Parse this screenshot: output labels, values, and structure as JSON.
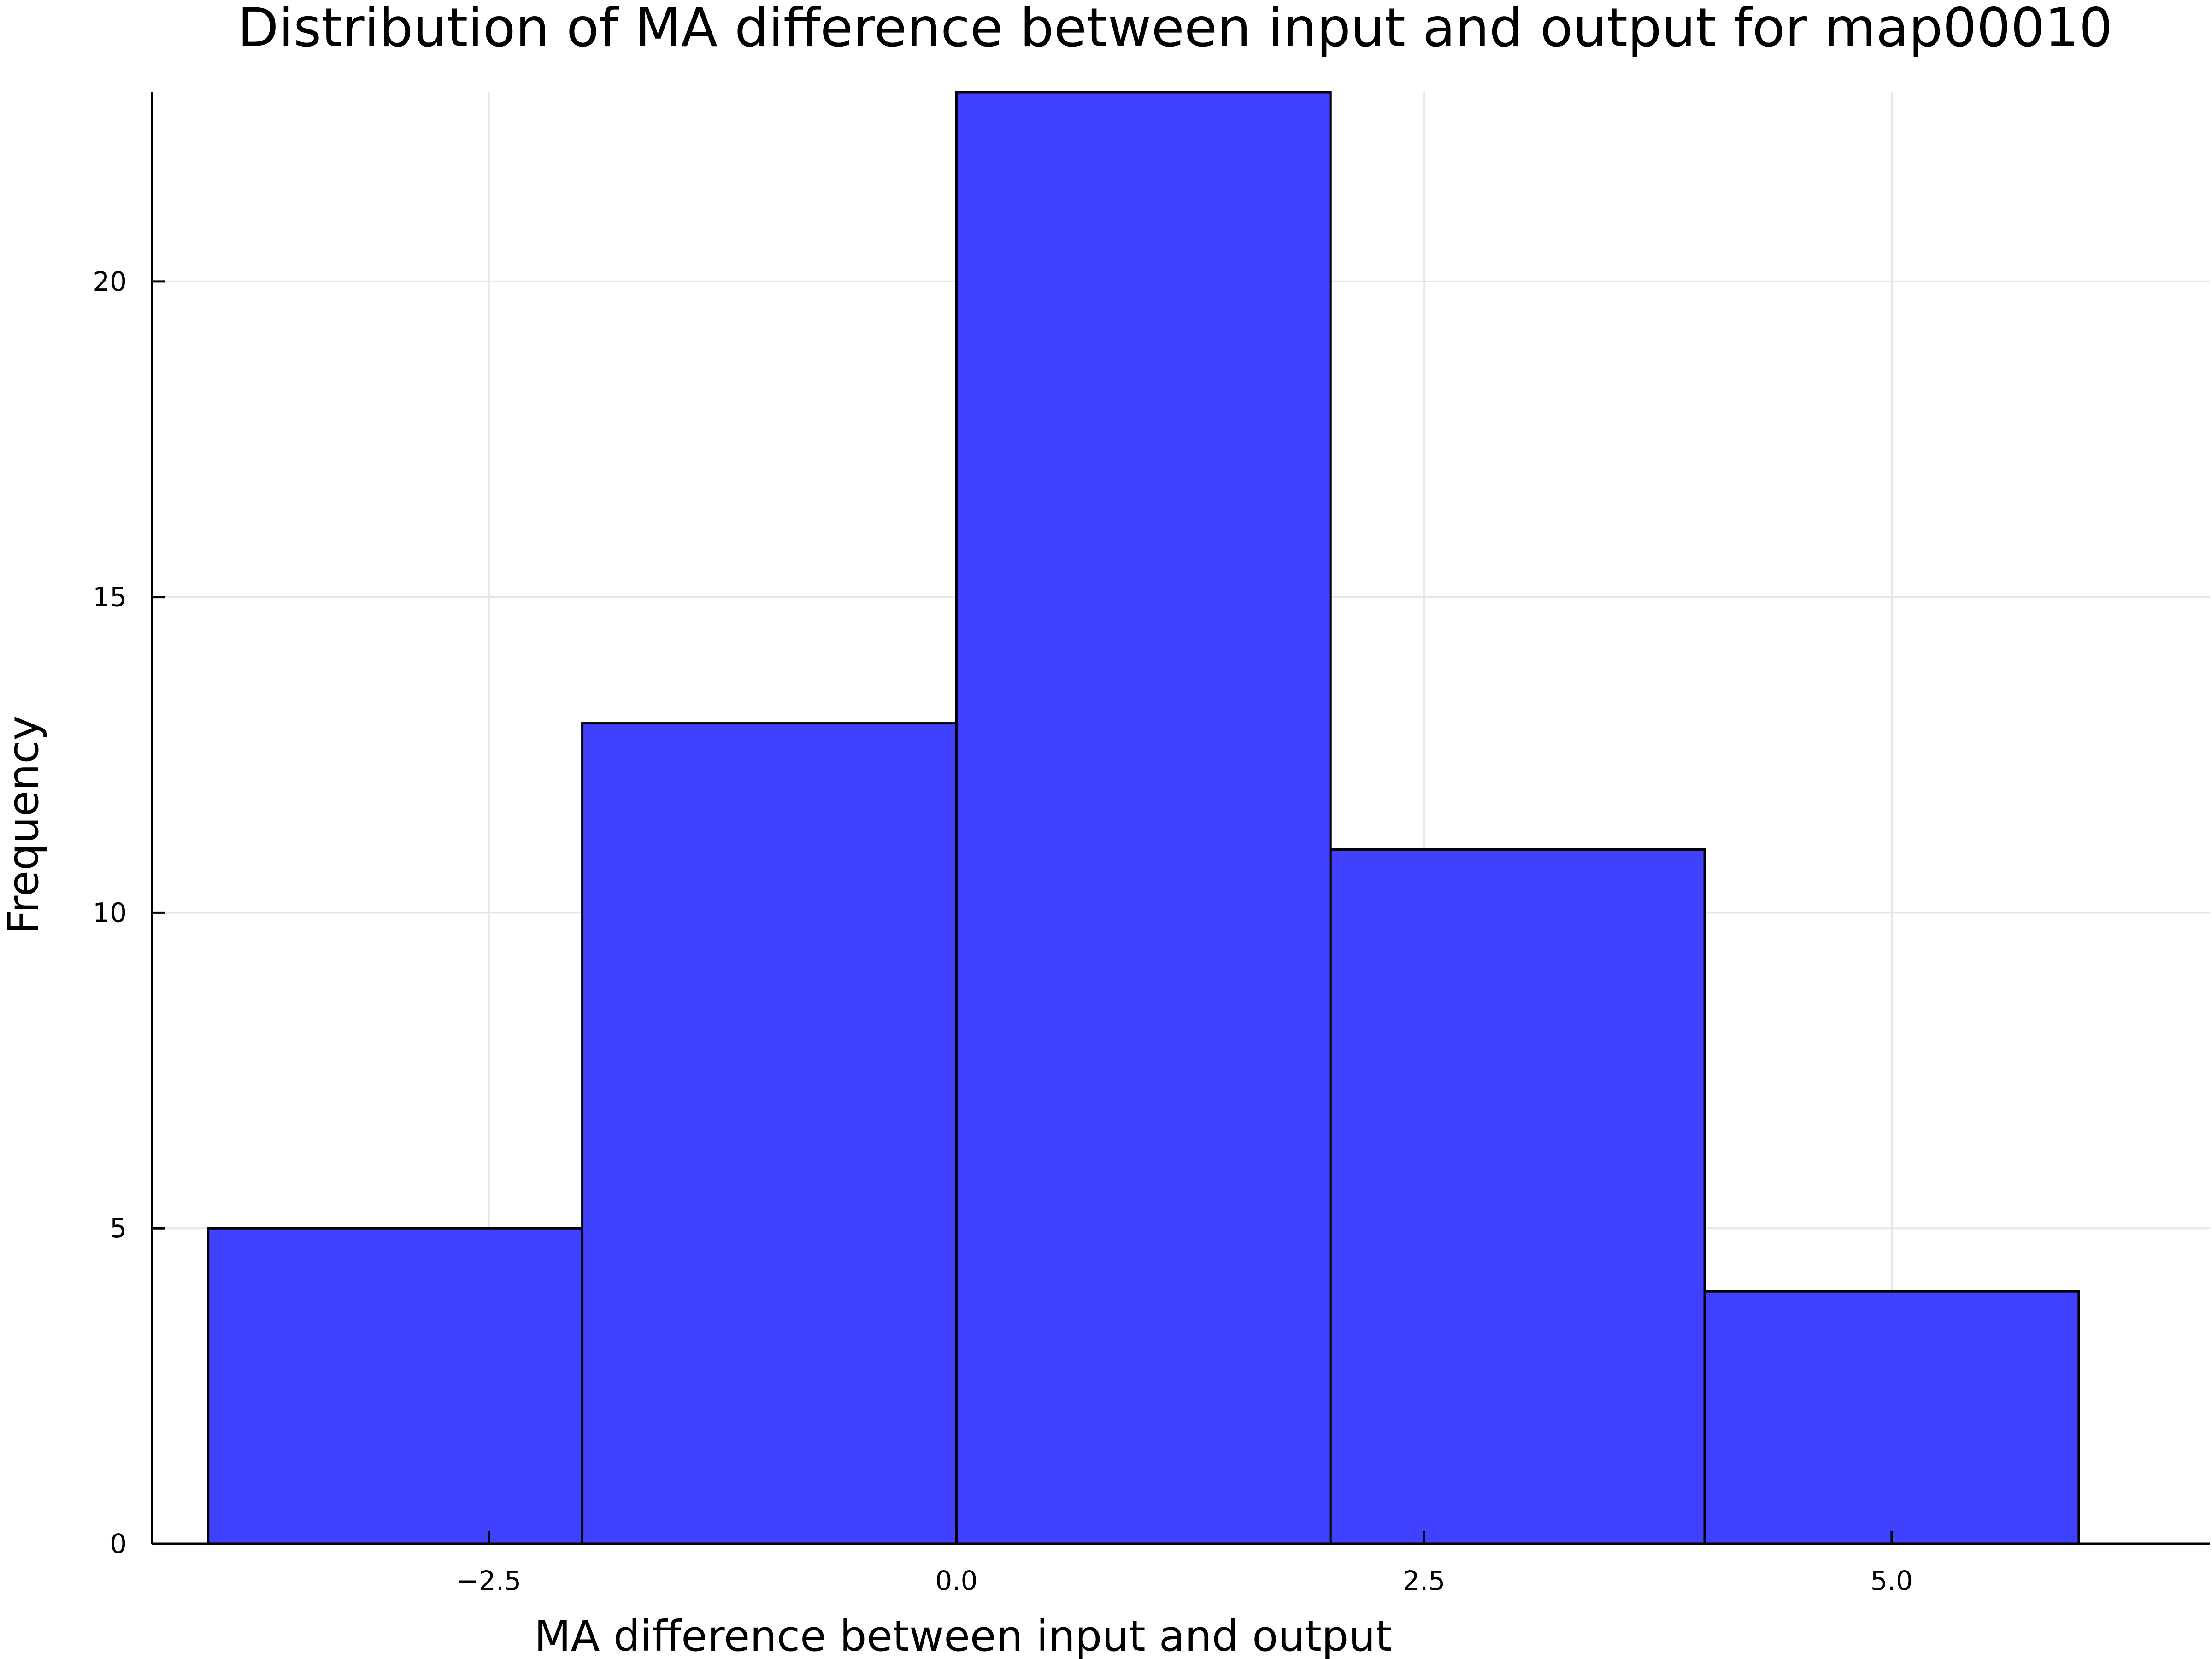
{
  "chart_data": {
    "type": "bar",
    "title": "Distribution of MA difference between input and output for map00010",
    "xlabel": "MA difference between input and output",
    "ylabel": "Frequency",
    "bins": [
      {
        "x0": -4,
        "x1": -2,
        "count": 5
      },
      {
        "x0": -2,
        "x1": 0,
        "count": 13
      },
      {
        "x0": 0,
        "x1": 2,
        "count": 23
      },
      {
        "x0": 2,
        "x1": 4,
        "count": 11
      },
      {
        "x0": 4,
        "x1": 6,
        "count": 4
      }
    ],
    "xlim": [
      -4.3,
      6.7
    ],
    "ylim": [
      0,
      23
    ],
    "xticks": [
      {
        "value": -2.5,
        "label": "−2.5"
      },
      {
        "value": 0,
        "label": "0.0"
      },
      {
        "value": 2.5,
        "label": "2.5"
      },
      {
        "value": 5,
        "label": "5.0"
      }
    ],
    "yticks": [
      {
        "value": 0,
        "label": "0"
      },
      {
        "value": 5,
        "label": "5"
      },
      {
        "value": 10,
        "label": "10"
      },
      {
        "value": 15,
        "label": "15"
      },
      {
        "value": 20,
        "label": "20"
      }
    ],
    "bar_color": "#4040ff",
    "grid": true,
    "legend": "none"
  }
}
